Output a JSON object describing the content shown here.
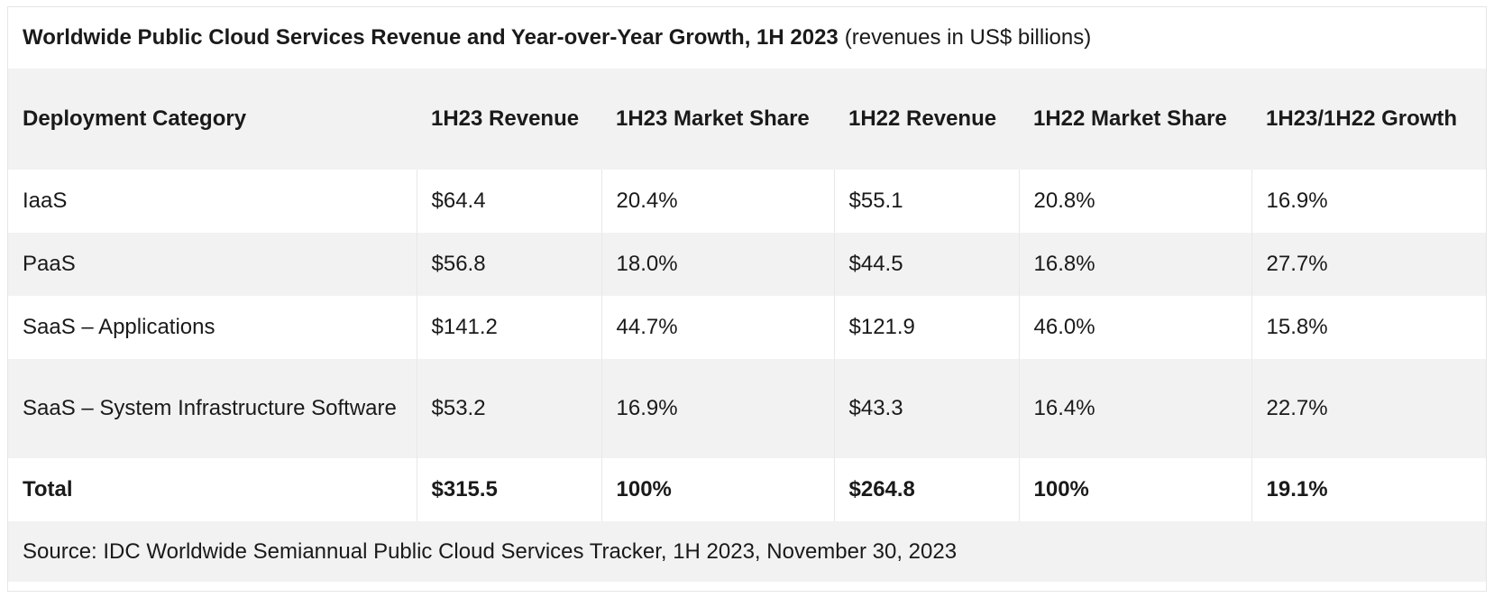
{
  "title": {
    "main": "Worldwide Public Cloud Services Revenue and Year-over-Year Growth, 1H 2023",
    "note": "(revenues in US$ billions)"
  },
  "table": {
    "headers": [
      "Deployment Category",
      "1H23 Revenue",
      "1H23 Market Share",
      "1H22 Revenue",
      "1H22 Market Share",
      "1H23/1H22 Growth"
    ],
    "rows": [
      [
        "IaaS",
        "$64.4",
        "20.4%",
        "$55.1",
        "20.8%",
        "16.9%"
      ],
      [
        "PaaS",
        "$56.8",
        "18.0%",
        "$44.5",
        "16.8%",
        "27.7%"
      ],
      [
        "SaaS – Applications",
        "$141.2",
        "44.7%",
        "$121.9",
        "46.0%",
        "15.8%"
      ],
      [
        "SaaS – System Infrastructure Software",
        "$53.2",
        "16.9%",
        "$43.3",
        "16.4%",
        "22.7%"
      ]
    ],
    "total": [
      "Total",
      "$315.5",
      "100%",
      "$264.8",
      "100%",
      "19.1%"
    ]
  },
  "source": "Source: IDC Worldwide Semiannual Public Cloud Services Tracker, 1H 2023, November 30, 2023",
  "colors": {
    "header_bg": "#f2f2f2",
    "stripe_bg": "#f2f2f2",
    "row_bg": "#ffffff",
    "text": "#1a1a1a"
  }
}
